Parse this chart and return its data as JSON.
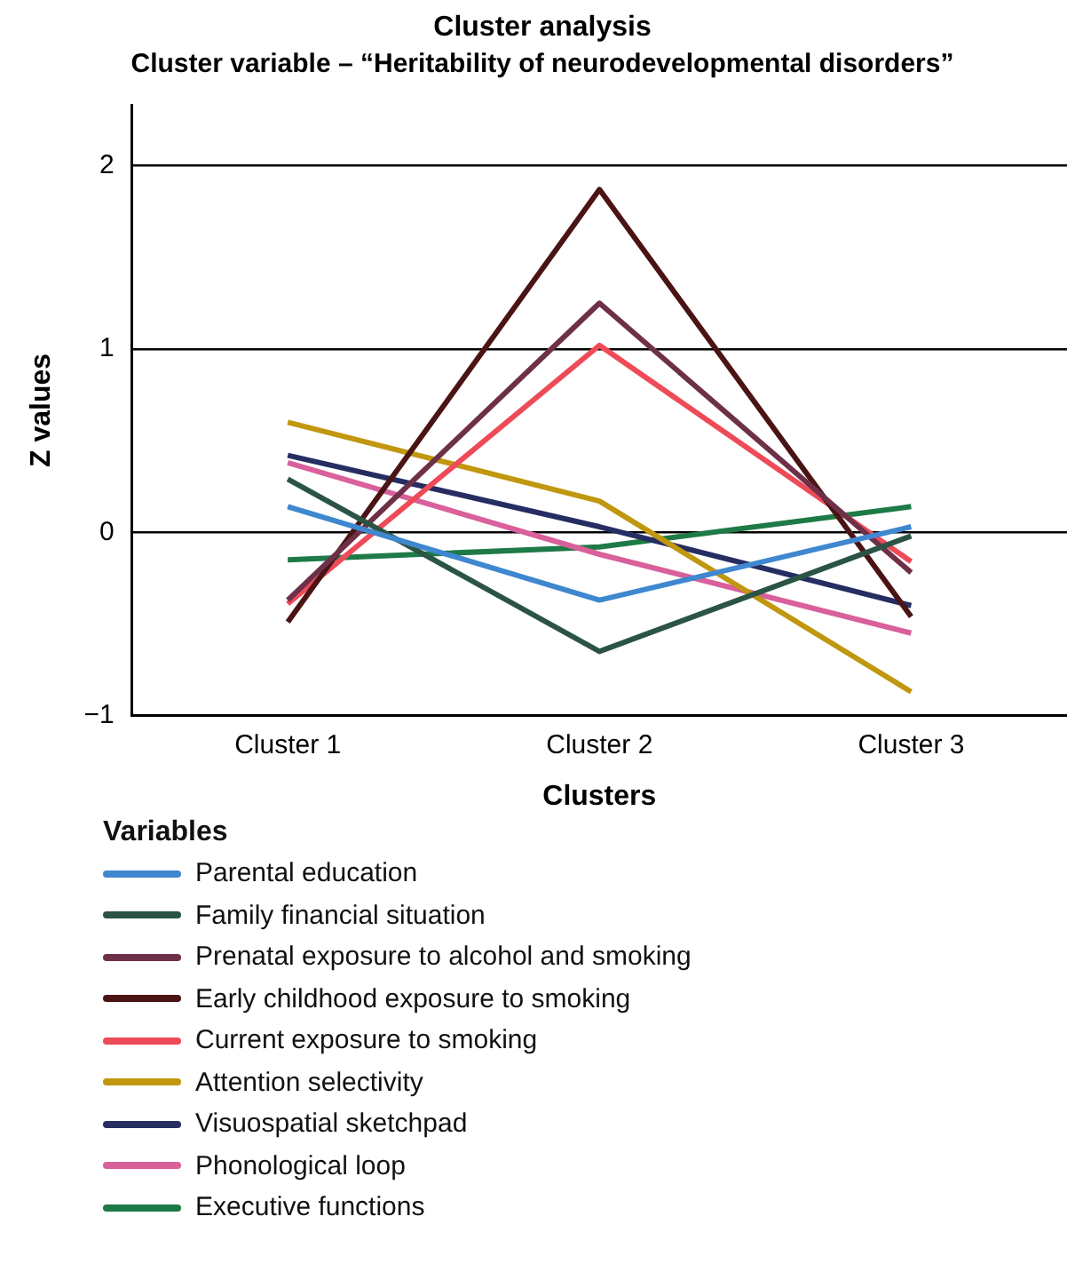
{
  "chart_data": {
    "type": "line",
    "title": "Cluster analysis",
    "subtitle": "Cluster variable – “Heritability of neurodevelopmental disorders”",
    "xlabel": "Clusters",
    "ylabel": "Z values",
    "legend_title": "Variables",
    "categories": [
      "Cluster 1",
      "Cluster 2",
      "Cluster 3"
    ],
    "series": [
      {
        "name": "Parental education",
        "color": "#3f87cf",
        "values": [
          0.14,
          -0.37,
          0.03
        ]
      },
      {
        "name": "Family financial situation",
        "color": "#2b5444",
        "values": [
          0.29,
          -0.65,
          -0.02
        ]
      },
      {
        "name": "Prenatal exposure to alcohol and smoking",
        "color": "#6e3048",
        "values": [
          -0.37,
          1.25,
          -0.22
        ]
      },
      {
        "name": "Early childhood exposure to smoking",
        "color": "#4a1414",
        "values": [
          -0.49,
          1.87,
          -0.46
        ]
      },
      {
        "name": "Current exposure to smoking",
        "color": "#ee4a58",
        "values": [
          -0.39,
          1.02,
          -0.16
        ]
      },
      {
        "name": "Attention selectivity",
        "color": "#c0970f",
        "values": [
          0.6,
          0.17,
          -0.87
        ]
      },
      {
        "name": "Visuospatial sketchpad",
        "color": "#262d63",
        "values": [
          0.42,
          0.03,
          -0.4
        ]
      },
      {
        "name": "Phonological loop",
        "color": "#d9609a",
        "values": [
          0.38,
          -0.12,
          -0.55
        ]
      },
      {
        "name": "Executive functions",
        "color": "#1e7a46",
        "values": [
          -0.15,
          -0.08,
          0.14
        ]
      }
    ],
    "ylim": [
      -1,
      2.33
    ],
    "yticks": [
      {
        "value": -1,
        "label": "−1"
      },
      0,
      1,
      2
    ],
    "grid": "y",
    "legend": "bottom",
    "marker": "none",
    "line_style": "solid"
  }
}
